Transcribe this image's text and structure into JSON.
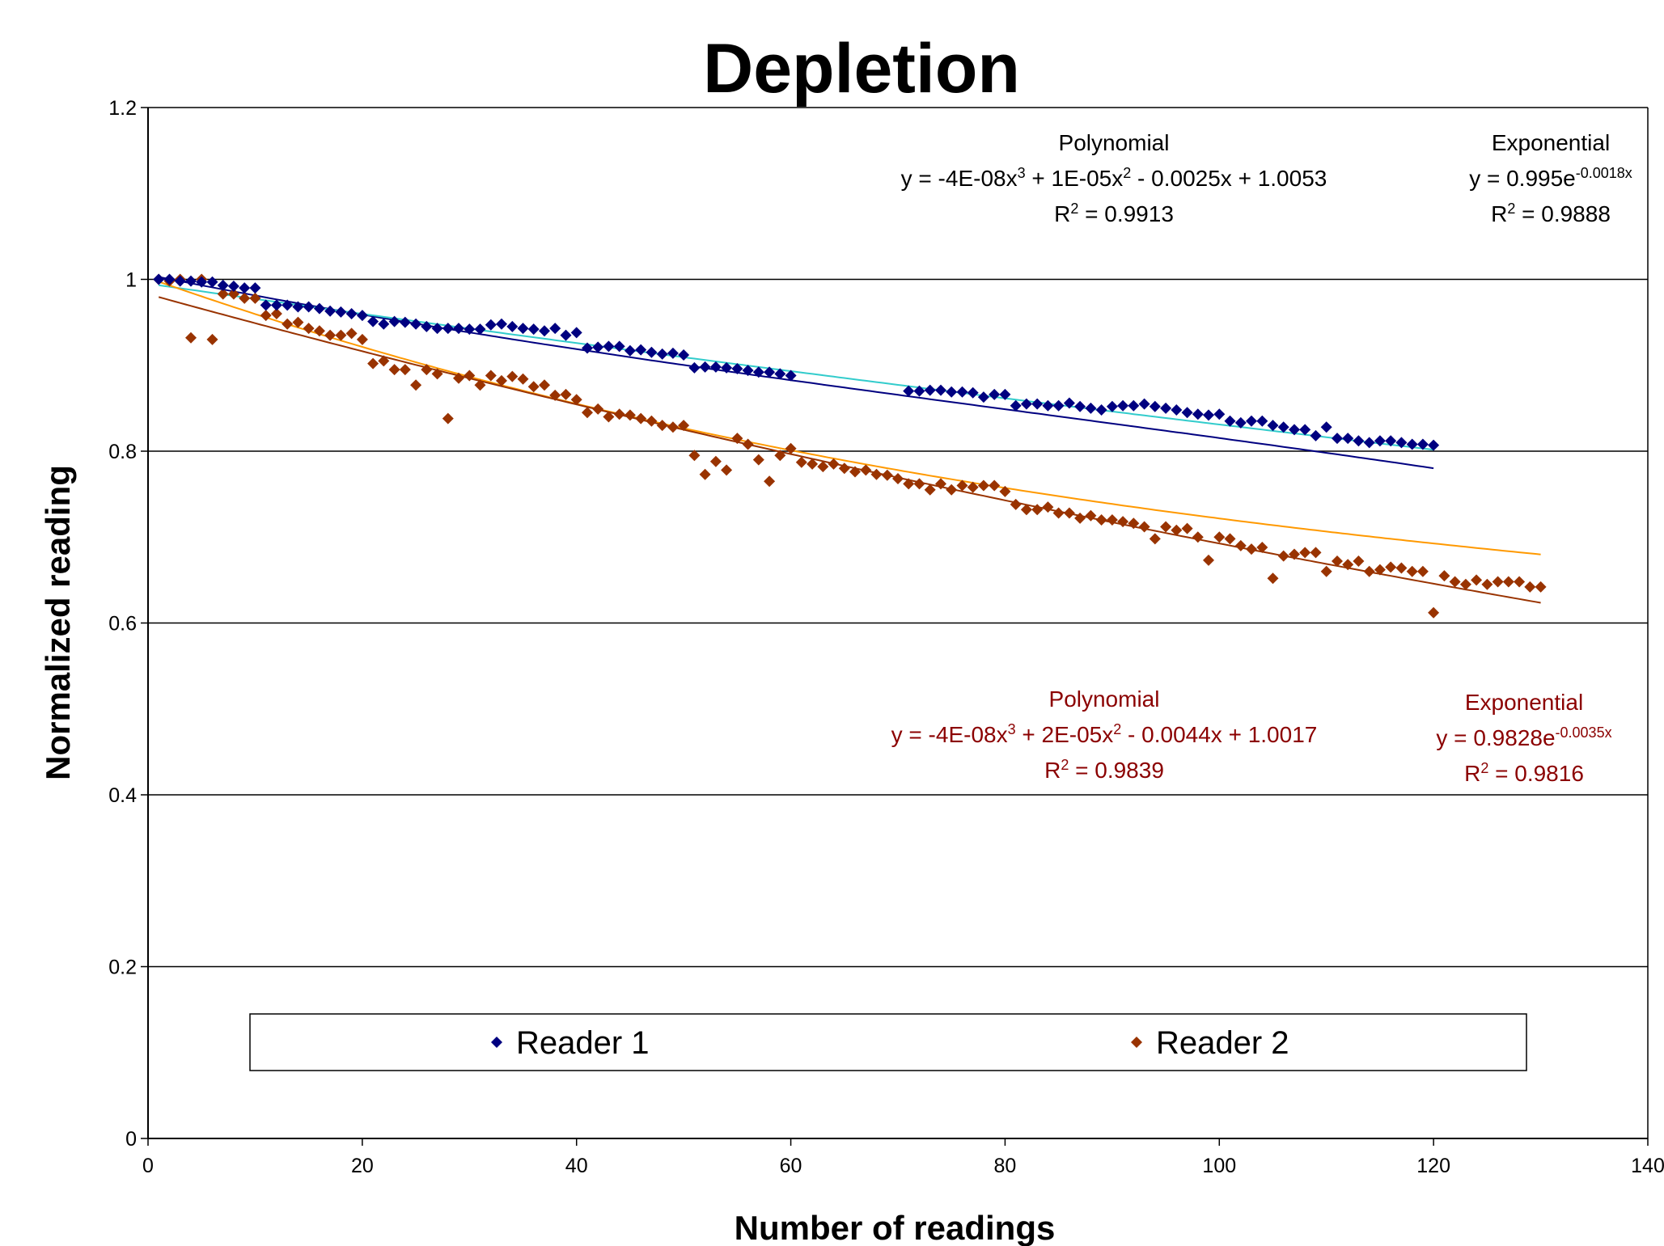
{
  "chart_data": {
    "type": "scatter",
    "title": "Depletion",
    "xlabel": "Number of readings",
    "ylabel": "Normalized reading",
    "xlim": [
      0,
      140
    ],
    "ylim": [
      0,
      1.2
    ],
    "x_ticks": [
      "0",
      "20",
      "40",
      "60",
      "80",
      "100",
      "120",
      "140"
    ],
    "y_ticks": [
      "0",
      "0.2",
      "0.4",
      "0.6",
      "0.8",
      "1",
      "1.2"
    ],
    "grid": "horizontal",
    "legend_position": "bottom",
    "colors": {
      "reader1": "#000080",
      "reader2": "#993300",
      "reader1_poly": "#000080",
      "reader1_exp": "#33CCCC",
      "reader2_poly": "#FF9900",
      "reader2_exp": "#993300",
      "annotation_reader2": "#8B0000"
    },
    "series": [
      {
        "name": "Reader 1",
        "color": "#000080",
        "marker": "diamond",
        "x": [
          1,
          2,
          3,
          4,
          5,
          6,
          7,
          8,
          9,
          10,
          11,
          12,
          13,
          14,
          15,
          16,
          17,
          18,
          19,
          20,
          21,
          22,
          23,
          24,
          25,
          26,
          27,
          28,
          29,
          30,
          31,
          32,
          33,
          34,
          35,
          36,
          37,
          38,
          39,
          40,
          41,
          42,
          43,
          44,
          45,
          46,
          47,
          48,
          49,
          50,
          51,
          52,
          53,
          54,
          55,
          56,
          57,
          58,
          59,
          60,
          71,
          72,
          73,
          74,
          75,
          76,
          77,
          78,
          79,
          80,
          81,
          82,
          83,
          84,
          85,
          86,
          87,
          88,
          89,
          90,
          91,
          92,
          93,
          94,
          95,
          96,
          97,
          98,
          99,
          100,
          101,
          102,
          103,
          104,
          105,
          106,
          107,
          108,
          109,
          110,
          111,
          112,
          113,
          114,
          115,
          116,
          117,
          118,
          119,
          120
        ],
        "y": [
          1.0,
          1.0,
          0.998,
          0.998,
          0.997,
          0.997,
          0.993,
          0.992,
          0.99,
          0.99,
          0.97,
          0.97,
          0.97,
          0.968,
          0.968,
          0.966,
          0.963,
          0.962,
          0.96,
          0.958,
          0.951,
          0.948,
          0.951,
          0.95,
          0.948,
          0.945,
          0.943,
          0.943,
          0.943,
          0.942,
          0.942,
          0.947,
          0.948,
          0.945,
          0.943,
          0.942,
          0.94,
          0.943,
          0.935,
          0.938,
          0.92,
          0.921,
          0.922,
          0.922,
          0.917,
          0.918,
          0.915,
          0.913,
          0.914,
          0.912,
          0.897,
          0.898,
          0.898,
          0.897,
          0.896,
          0.894,
          0.892,
          0.892,
          0.89,
          0.888,
          0.87,
          0.87,
          0.871,
          0.871,
          0.869,
          0.869,
          0.868,
          0.863,
          0.866,
          0.866,
          0.853,
          0.855,
          0.855,
          0.853,
          0.853,
          0.856,
          0.852,
          0.85,
          0.848,
          0.852,
          0.853,
          0.853,
          0.855,
          0.852,
          0.85,
          0.848,
          0.845,
          0.843,
          0.842,
          0.843,
          0.835,
          0.833,
          0.835,
          0.835,
          0.83,
          0.828,
          0.825,
          0.825,
          0.818,
          0.828,
          0.815,
          0.815,
          0.812,
          0.81,
          0.812,
          0.812,
          0.81,
          0.808,
          0.808,
          0.807
        ]
      },
      {
        "name": "Reader 2",
        "color": "#993300",
        "marker": "diamond",
        "x": [
          1,
          2,
          3,
          4,
          5,
          6,
          7,
          8,
          9,
          10,
          11,
          12,
          13,
          14,
          15,
          16,
          17,
          18,
          19,
          20,
          21,
          22,
          23,
          24,
          25,
          26,
          27,
          28,
          29,
          30,
          31,
          32,
          33,
          34,
          35,
          36,
          37,
          38,
          39,
          40,
          41,
          42,
          43,
          44,
          45,
          46,
          47,
          48,
          49,
          50,
          51,
          52,
          53,
          54,
          55,
          56,
          57,
          58,
          59,
          60,
          61,
          62,
          63,
          64,
          65,
          66,
          67,
          68,
          69,
          70,
          71,
          72,
          73,
          74,
          75,
          76,
          77,
          78,
          79,
          80,
          81,
          82,
          83,
          84,
          85,
          86,
          87,
          88,
          89,
          90,
          91,
          92,
          93,
          94,
          95,
          96,
          97,
          98,
          99,
          100,
          101,
          102,
          103,
          104,
          105,
          106,
          107,
          108,
          109,
          110,
          111,
          112,
          113,
          114,
          115,
          116,
          117,
          118,
          119,
          120,
          121,
          122,
          123,
          124,
          125,
          126,
          127,
          128,
          129,
          130
        ],
        "y": [
          1.0,
          0.998,
          1.0,
          0.932,
          1.0,
          0.93,
          0.983,
          0.983,
          0.978,
          0.978,
          0.958,
          0.96,
          0.948,
          0.95,
          0.943,
          0.94,
          0.935,
          0.935,
          0.937,
          0.93,
          0.902,
          0.905,
          0.895,
          0.895,
          0.877,
          0.895,
          0.89,
          0.838,
          0.885,
          0.888,
          0.877,
          0.888,
          0.882,
          0.887,
          0.884,
          0.875,
          0.877,
          0.865,
          0.866,
          0.86,
          0.845,
          0.849,
          0.84,
          0.843,
          0.842,
          0.838,
          0.835,
          0.83,
          0.828,
          0.83,
          0.795,
          0.773,
          0.788,
          0.778,
          0.815,
          0.808,
          0.79,
          0.765,
          0.795,
          0.803,
          0.787,
          0.785,
          0.782,
          0.785,
          0.78,
          0.776,
          0.778,
          0.773,
          0.772,
          0.768,
          0.762,
          0.762,
          0.755,
          0.762,
          0.755,
          0.76,
          0.758,
          0.76,
          0.76,
          0.753,
          0.738,
          0.732,
          0.732,
          0.735,
          0.728,
          0.728,
          0.722,
          0.725,
          0.72,
          0.72,
          0.718,
          0.716,
          0.712,
          0.698,
          0.712,
          0.708,
          0.71,
          0.7,
          0.673,
          0.7,
          0.698,
          0.69,
          0.686,
          0.688,
          0.652,
          0.678,
          0.68,
          0.682,
          0.682,
          0.66,
          0.672,
          0.668,
          0.672,
          0.66,
          0.662,
          0.665,
          0.664,
          0.66,
          0.66,
          0.612,
          0.655,
          0.648,
          0.645,
          0.65,
          0.645,
          0.648,
          0.648,
          0.648,
          0.642,
          0.642
        ]
      }
    ],
    "trendlines": [
      {
        "series": "Reader 1",
        "kind": "Polynomial",
        "coeffs": [
          1.0053,
          -0.0025,
          1e-05,
          -4e-08
        ],
        "x_range": [
          1,
          120
        ]
      },
      {
        "series": "Reader 1",
        "kind": "Exponential",
        "a": 0.995,
        "b": -0.0018,
        "x_range": [
          1,
          120
        ]
      },
      {
        "series": "Reader 2",
        "kind": "Polynomial",
        "coeffs": [
          1.0017,
          -0.0044,
          2e-05,
          -4e-08
        ],
        "x_range": [
          1,
          130
        ]
      },
      {
        "series": "Reader 2",
        "kind": "Exponential",
        "a": 0.9828,
        "b": -0.0035,
        "x_range": [
          1,
          130
        ]
      }
    ],
    "annotations": {
      "reader1_poly": {
        "heading": "Polynomial",
        "eq_a": "y = -4E-08x",
        "eq_b": "3",
        "eq_c": " + 1E-05x",
        "eq_d": "2",
        "eq_e": " - 0.0025x + 1.0053",
        "r_a": "R",
        "r_b": "2",
        "r_c": " = 0.9913"
      },
      "reader1_exp": {
        "heading": "Exponential",
        "eq_a": "y = 0.995e",
        "eq_b": "-0.0018x",
        "r_a": "R",
        "r_b": "2",
        "r_c": " = 0.9888"
      },
      "reader2_poly": {
        "heading": "Polynomial",
        "eq_a": "y = -4E-08x",
        "eq_b": "3",
        "eq_c": " + 2E-05x",
        "eq_d": "2",
        "eq_e": " - 0.0044x + 1.0017",
        "r_a": "R",
        "r_b": "2",
        "r_c": " = 0.9839"
      },
      "reader2_exp": {
        "heading": "Exponential",
        "eq_a": "y = 0.9828e",
        "eq_b": "-0.0035x",
        "r_a": "R",
        "r_b": "2",
        "r_c": " = 0.9816"
      }
    },
    "legend": [
      {
        "label": "Reader 1",
        "color": "#000080"
      },
      {
        "label": "Reader 2",
        "color": "#993300"
      }
    ]
  }
}
